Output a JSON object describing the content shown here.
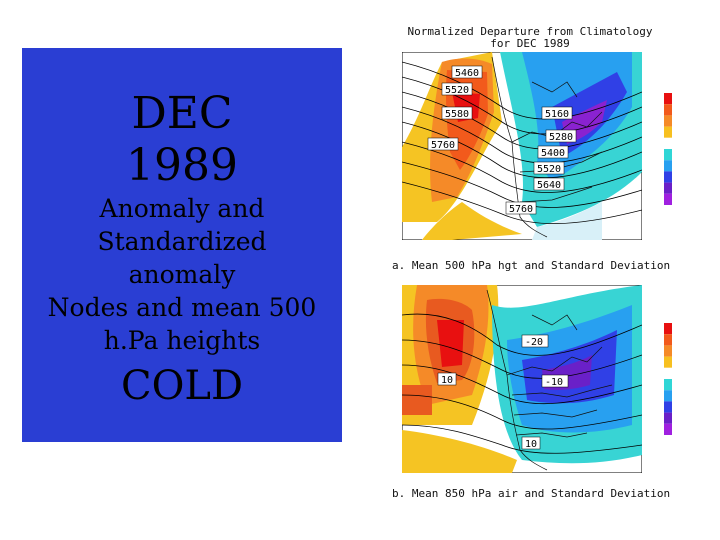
{
  "panel": {
    "month": "DEC",
    "year": "1989",
    "subtitle_lines": [
      "Anomaly and",
      "Standardized",
      "anomaly",
      "Nodes and mean 500",
      "h.Pa heights"
    ],
    "verdict": "COLD"
  },
  "figure": {
    "title_line1": "Normalized Departure from Climatology",
    "title_line2": "for DEC 1989",
    "top_map": {
      "caption": "a. Mean 500  hPa hgt and Standard Deviation",
      "labels": [
        "5460",
        "5520",
        "5580",
        "5760",
        "5160",
        "5280",
        "5400",
        "5520",
        "5640",
        "5760"
      ]
    },
    "bottom_map": {
      "caption": "b. Mean 850 hPa air and Standard Deviation",
      "labels": [
        "-20",
        "10",
        "-10",
        "10"
      ]
    },
    "color_scale": [
      "#e81010",
      "#f25a1c",
      "#f58a28",
      "#f7c020",
      "#ffffff",
      "#30d6d6",
      "#28a0f0",
      "#3040e6",
      "#6a20c8",
      "#a020e0"
    ]
  }
}
